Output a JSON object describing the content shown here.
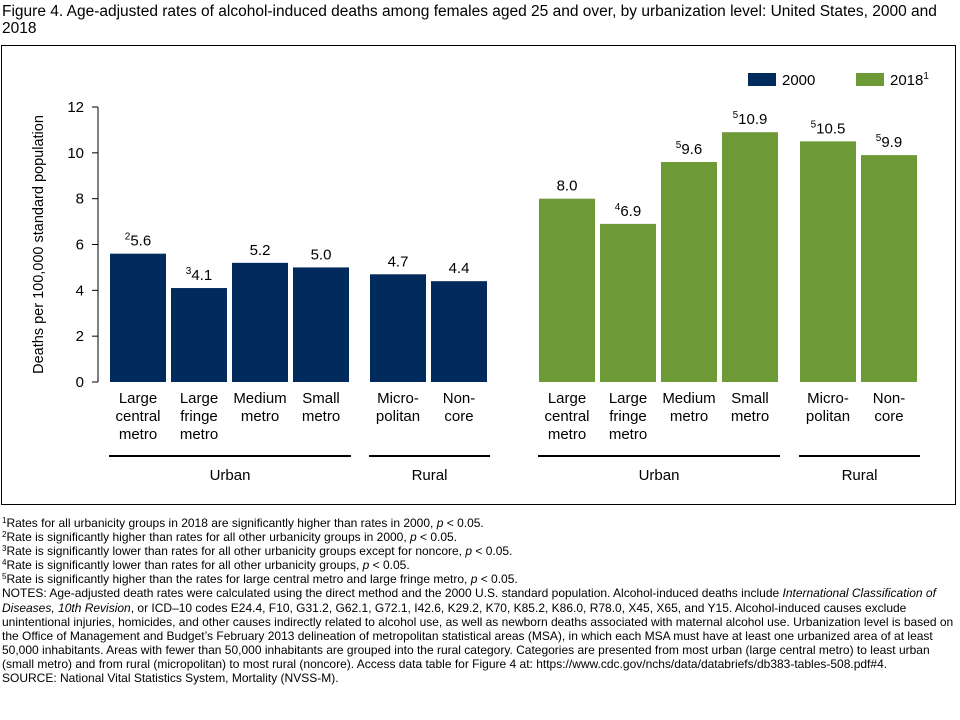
{
  "figure_title": "Figure 4. Age-adjusted rates of alcohol-induced deaths among females aged 25 and over, by urbanization level: United States, 2000 and 2018",
  "colors": {
    "series_2000": "#002b5c",
    "series_2018": "#6d9a36"
  },
  "chart_data": {
    "type": "bar",
    "ylabel": "Deaths per 100,000 standard population",
    "ylim": [
      0,
      12
    ],
    "yticks": [
      "0",
      "2",
      "4",
      "6",
      "8",
      "10",
      "12"
    ],
    "legend": {
      "placement": "top-right",
      "entries": [
        {
          "name": "2000",
          "sup": ""
        },
        {
          "name": "2018",
          "sup": "1"
        }
      ]
    },
    "category_lines": [
      [
        "Large",
        "central",
        "metro"
      ],
      [
        "Large",
        "fringe",
        "metro"
      ],
      [
        "Medium",
        "metro"
      ],
      [
        "Small",
        "metro"
      ],
      [
        "Micro-",
        "politan"
      ],
      [
        "Non-",
        "core"
      ]
    ],
    "group_labels": [
      "Urban",
      "Rural"
    ],
    "series": [
      {
        "name": "2000",
        "values": [
          5.6,
          4.1,
          5.2,
          5.0,
          4.7,
          4.4
        ],
        "labels": [
          "5.6",
          "4.1",
          "5.2",
          "5.0",
          "4.7",
          "4.4"
        ],
        "footnote_marks": [
          "2",
          "3",
          "",
          "",
          "",
          ""
        ]
      },
      {
        "name": "2018",
        "values": [
          8.0,
          6.9,
          9.6,
          10.9,
          10.5,
          9.9
        ],
        "labels": [
          "8.0",
          "6.9",
          "9.6",
          "10.9",
          "10.5",
          "9.9"
        ],
        "footnote_marks": [
          "",
          "4",
          "5",
          "5",
          "5",
          "5"
        ]
      }
    ]
  },
  "notes": {
    "footnotes": [
      {
        "mark": "1",
        "pre": "Rates for all urbanicity groups in 2018 are significantly higher than rates in 2000, ",
        "p": "p",
        "post": " < 0.05."
      },
      {
        "mark": "2",
        "pre": "Rate is significantly higher than rates for all other urbanicity groups in 2000, ",
        "p": "p",
        "post": " < 0.05."
      },
      {
        "mark": "3",
        "pre": "Rate is significantly lower than rates for all other urbanicity groups except for noncore, ",
        "p": "p",
        "post": " < 0.05."
      },
      {
        "mark": "4",
        "pre": "Rate is significantly lower than rates for all other urbanicity groups, ",
        "p": "p",
        "post": " < 0.05."
      },
      {
        "mark": "5",
        "pre": "Rate is significantly higher than the rates for large central metro and large fringe metro, ",
        "p": "p",
        "post": " < 0.05."
      }
    ],
    "notes_a": "NOTES: Age-adjusted death rates were calculated using the direct method and the 2000 U.S. standard population. Alcohol-induced deaths include ",
    "notes_italic": "International Classification of Diseases, 10th Revision",
    "notes_b": ", or ICD–10 codes E24.4, F10, G31.2, G62.1, G72.1, I42.6, K29.2, K70, K85.2, K86.0, R78.0, X45, X65, and Y15. Alcohol-induced causes exclude unintentional injuries, homicides, and other causes indirectly related to alcohol use, as well as newborn deaths associated with maternal alcohol use. Urbanization level is based on the Office of Management and Budget’s February 2013 delineation of metropolitan statistical areas (MSA), in which each MSA must have at least one urbanized area of at least 50,000 inhabitants. Areas with fewer than 50,000 inhabitants are grouped into the rural category. Categories are presented from most urban (large central metro) to least urban (small metro) and from rural (micropolitan) to most rural (noncore). Access data table for Figure 4 at: https://www.cdc.gov/nchs/data/databriefs/db383-tables-508.pdf#4.",
    "source": "SOURCE: National Vital Statistics System, Mortality (NVSS-M)."
  }
}
